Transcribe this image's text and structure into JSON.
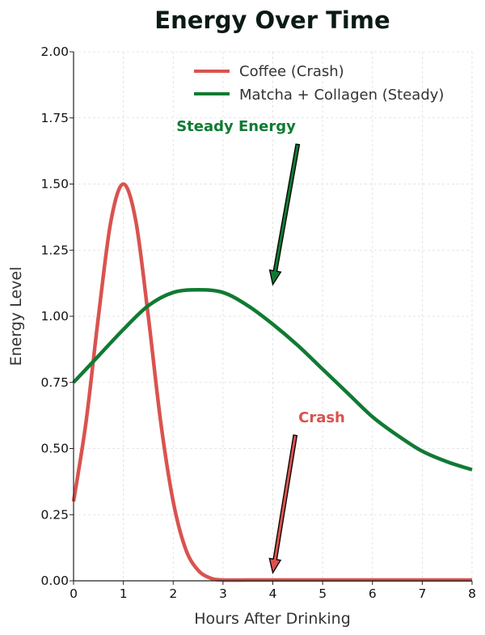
{
  "chart_data": {
    "type": "line",
    "title": "Energy Over Time",
    "xlabel": "Hours After Drinking",
    "ylabel": "Energy Level",
    "xlim": [
      0,
      8
    ],
    "ylim": [
      0,
      2
    ],
    "grid": true,
    "legend_position": "top-right",
    "x_ticks": [
      "0",
      "1",
      "2",
      "3",
      "4",
      "5",
      "6",
      "7",
      "8"
    ],
    "y_ticks": [
      "0.00",
      "0.25",
      "0.50",
      "0.75",
      "1.00",
      "1.25",
      "1.50",
      "1.75",
      "2.00"
    ],
    "series": [
      {
        "name": "Coffee (Crash)",
        "color": "#d9534f",
        "x": [
          0,
          0.25,
          0.5,
          0.75,
          1,
          1.25,
          1.5,
          1.75,
          2,
          2.25,
          2.5,
          2.75,
          3,
          3.5,
          4,
          5,
          6,
          7,
          8
        ],
        "y": [
          0.3,
          0.6,
          1.0,
          1.36,
          1.5,
          1.36,
          1.0,
          0.6,
          0.3,
          0.12,
          0.04,
          0.01,
          0.0,
          0.0,
          0.0,
          0.0,
          0.0,
          0.0,
          0.0
        ]
      },
      {
        "name": "Matcha + Collagen (Steady)",
        "color": "#107a33",
        "x": [
          0,
          0.5,
          1,
          1.5,
          2,
          2.5,
          3,
          3.5,
          4,
          4.5,
          5,
          5.5,
          6,
          6.5,
          7,
          7.5,
          8
        ],
        "y": [
          0.75,
          0.85,
          0.95,
          1.04,
          1.09,
          1.1,
          1.09,
          1.04,
          0.97,
          0.89,
          0.8,
          0.71,
          0.62,
          0.55,
          0.49,
          0.45,
          0.42
        ]
      }
    ],
    "annotations": [
      {
        "text": "Steady Energy",
        "color": "#107a33",
        "arrow_from": [
          4.5,
          1.65
        ],
        "arrow_to": [
          4.0,
          1.12
        ]
      },
      {
        "text": "Crash",
        "color": "#d9534f",
        "arrow_from": [
          4.45,
          0.55
        ],
        "arrow_to": [
          4.0,
          0.03
        ]
      }
    ]
  }
}
